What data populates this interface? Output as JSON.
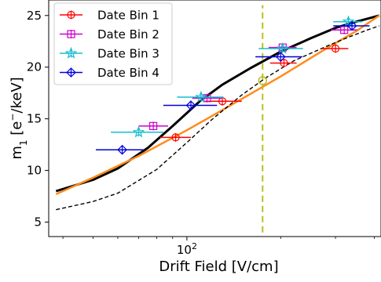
{
  "chart_data": {
    "type": "scatter",
    "xlabel": "Drift Field [V/cm]",
    "ylabel": "m",
    "ylabel_sub": "1",
    "ylabel_unit": " [e",
    "ylabel_sup": "−",
    "ylabel_end": "/keV]",
    "xscale": "log",
    "xlim": [
      36,
      420
    ],
    "ylim": [
      3.6,
      26.5
    ],
    "x_tick_labels": [
      {
        "value": 100,
        "base": "10",
        "exp": "2"
      }
    ],
    "y_ticks": [
      5,
      10,
      15,
      20,
      25
    ],
    "y_tick_labels": [
      "5",
      "10",
      "15",
      "20",
      "25"
    ],
    "legend_position": "upper-left",
    "series": [
      {
        "name": "Date Bin 1",
        "color": "#ff0000",
        "marker": "circle-plus",
        "points": [
          {
            "x": 92,
            "y": 13.2,
            "xerr": [
              82,
              103
            ]
          },
          {
            "x": 130,
            "y": 16.7,
            "xerr": [
              113,
              150
            ]
          },
          {
            "x": 205,
            "y": 20.4,
            "xerr": [
              185,
              225
            ]
          },
          {
            "x": 300,
            "y": 21.8,
            "xerr": [
              272,
              330
            ]
          }
        ]
      },
      {
        "name": "Date Bin 2",
        "color": "#cc00cc",
        "marker": "square-plus",
        "points": [
          {
            "x": 78,
            "y": 14.3,
            "xerr": [
              70,
              87
            ]
          },
          {
            "x": 116,
            "y": 17.0,
            "xerr": [
              104,
              130
            ]
          },
          {
            "x": 203,
            "y": 21.9,
            "xerr": [
              183,
              225
            ]
          },
          {
            "x": 320,
            "y": 23.6,
            "xerr": [
              290,
              352
            ]
          }
        ]
      },
      {
        "name": "Date Bin 3",
        "color": "#17becf",
        "marker": "star-plus",
        "points": [
          {
            "x": 70,
            "y": 13.7,
            "xerr": [
              57,
              84
            ]
          },
          {
            "x": 111,
            "y": 17.1,
            "xerr": [
              93,
              131
            ]
          },
          {
            "x": 203,
            "y": 21.8,
            "xerr": [
              170,
              236
            ]
          },
          {
            "x": 330,
            "y": 24.4,
            "xerr": [
              295,
              366
            ]
          }
        ]
      },
      {
        "name": "Date Bin 4",
        "color": "#0000dd",
        "marker": "diamond-plus",
        "points": [
          {
            "x": 62,
            "y": 12.0,
            "xerr": [
              51,
              73
            ]
          },
          {
            "x": 103,
            "y": 16.3,
            "xerr": [
              84,
              125
            ]
          },
          {
            "x": 200,
            "y": 21.0,
            "xerr": [
              166,
              235
            ]
          },
          {
            "x": 339,
            "y": 24.0,
            "xerr": [
              295,
              386
            ]
          }
        ]
      }
    ],
    "curves": [
      {
        "color": "#000000",
        "style": "solid",
        "points": [
          [
            38,
            8.0
          ],
          [
            50,
            9.1
          ],
          [
            60,
            10.2
          ],
          [
            75,
            12.2
          ],
          [
            90,
            14.3
          ],
          [
            110,
            16.7
          ],
          [
            130,
            18.3
          ],
          [
            160,
            19.9
          ],
          [
            200,
            21.5
          ],
          [
            250,
            22.8
          ],
          [
            300,
            23.8
          ],
          [
            350,
            24.4
          ],
          [
            415,
            25.0
          ]
        ]
      },
      {
        "color": "#ff8c1a",
        "style": "solid",
        "points": [
          [
            38,
            7.7
          ],
          [
            50,
            9.3
          ],
          [
            70,
            11.4
          ],
          [
            100,
            13.9
          ],
          [
            140,
            16.4
          ],
          [
            200,
            19.1
          ],
          [
            280,
            21.8
          ],
          [
            350,
            23.5
          ],
          [
            415,
            25.0
          ]
        ]
      },
      {
        "color": "#000000",
        "style": "dashed",
        "points": [
          [
            38,
            6.2
          ],
          [
            50,
            7.0
          ],
          [
            60,
            7.8
          ],
          [
            80,
            10.1
          ],
          [
            100,
            12.7
          ],
          [
            120,
            14.9
          ],
          [
            150,
            17.3
          ],
          [
            180,
            19.0
          ],
          [
            220,
            20.6
          ],
          [
            280,
            22.0
          ],
          [
            330,
            22.9
          ],
          [
            380,
            23.6
          ],
          [
            415,
            24.0
          ]
        ]
      }
    ],
    "vline": {
      "x": 175,
      "color": "#bcbd22",
      "style": "dashed",
      "ymin": 4.0,
      "ymax": 26.0
    },
    "highlight": {
      "x": 175,
      "y": 18.7,
      "color": "#bcbd22",
      "marker": "circle"
    }
  }
}
